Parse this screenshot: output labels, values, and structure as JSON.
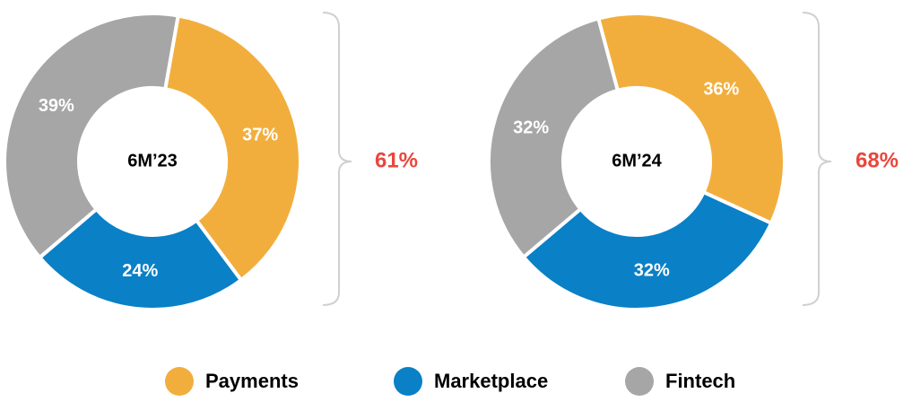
{
  "chart_data": [
    {
      "type": "pie",
      "donut": true,
      "title": "6M’23",
      "categories": [
        "Payments",
        "Marketplace",
        "Fintech"
      ],
      "values": [
        37,
        24,
        39
      ],
      "value_labels": [
        "37%",
        "24%",
        "39%"
      ],
      "colors": [
        "#f2ae3d",
        "#0a80c6",
        "#a6a6a6"
      ],
      "annotation": "61%"
    },
    {
      "type": "pie",
      "donut": true,
      "title": "6M’24",
      "categories": [
        "Payments",
        "Marketplace",
        "Fintech"
      ],
      "values": [
        36,
        32,
        32
      ],
      "value_labels": [
        "36%",
        "32%",
        "32%"
      ],
      "colors": [
        "#f2ae3d",
        "#0a80c6",
        "#a6a6a6"
      ],
      "annotation": "68%"
    }
  ]
}
